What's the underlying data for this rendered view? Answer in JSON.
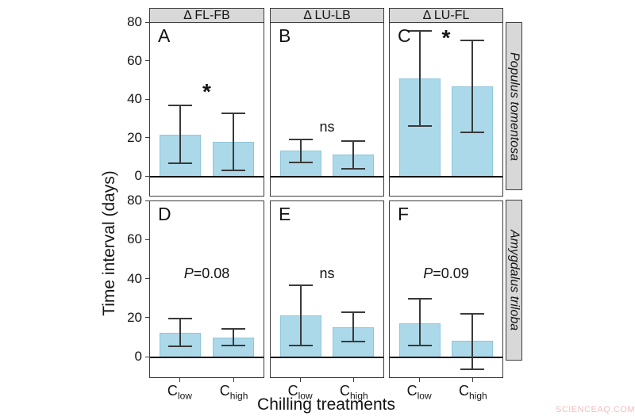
{
  "figure": {
    "y_axis_label": "Time interval (days)",
    "x_axis_label": "Chilling treatments",
    "watermark": "SCIENCEAQ.COM",
    "colors": {
      "bar_fill": "#ABD9E9",
      "bar_edge": "#8FC6DC",
      "error_bar": "#3A3A3A",
      "panel_border": "#3C3C3C",
      "strip_bg": "#D8D8D8",
      "zero_line": "#111111",
      "text": "#141414",
      "watermark": "#F2BEBE"
    }
  },
  "chart_data": {
    "type": "bar",
    "title": "",
    "xlabel": "Chilling treatments",
    "ylabel": "Time interval (days)",
    "ylim": [
      -11,
      80
    ],
    "yticks": [
      0,
      20,
      40,
      60,
      80
    ],
    "grid": false,
    "legend": false,
    "categories": [
      {
        "label": "C",
        "sub": "low"
      },
      {
        "label": "C",
        "sub": "high"
      }
    ],
    "col_facets": [
      "Δ FL-FB",
      "Δ LU-LB",
      "Δ LU-FL"
    ],
    "row_facets": [
      "Populus tomentosa",
      "Amygdalus triloba"
    ],
    "panels": [
      {
        "letter": "A",
        "row": 0,
        "col": 0,
        "annotation": {
          "text": "*",
          "kind": "star",
          "y": 44
        },
        "bars": [
          {
            "category": "Clow",
            "value": 22,
            "err_lo": 7,
            "err_hi": 37
          },
          {
            "category": "Chigh",
            "value": 18,
            "err_lo": 3.5,
            "err_hi": 33
          }
        ]
      },
      {
        "letter": "B",
        "row": 0,
        "col": 1,
        "annotation": {
          "text": "ns",
          "kind": "ns",
          "y": 26
        },
        "bars": [
          {
            "category": "Clow",
            "value": 13.5,
            "err_lo": 7.5,
            "err_hi": 19.5
          },
          {
            "category": "Chigh",
            "value": 11.5,
            "err_lo": 4,
            "err_hi": 18.5
          }
        ]
      },
      {
        "letter": "C",
        "row": 0,
        "col": 2,
        "annotation": {
          "text": "*",
          "kind": "star",
          "y": 72
        },
        "bars": [
          {
            "category": "Clow",
            "value": 51,
            "err_lo": 26.5,
            "err_hi": 76
          },
          {
            "category": "Chigh",
            "value": 47,
            "err_lo": 23,
            "err_hi": 71
          }
        ]
      },
      {
        "letter": "D",
        "row": 1,
        "col": 0,
        "annotation": {
          "text": "P=0.08",
          "kind": "pvalue",
          "y": 43
        },
        "bars": [
          {
            "category": "Clow",
            "value": 12.5,
            "err_lo": 5.5,
            "err_hi": 20
          },
          {
            "category": "Chigh",
            "value": 10,
            "err_lo": 6,
            "err_hi": 14.5
          }
        ]
      },
      {
        "letter": "E",
        "row": 1,
        "col": 1,
        "annotation": {
          "text": "ns",
          "kind": "ns",
          "y": 43
        },
        "bars": [
          {
            "category": "Clow",
            "value": 21.5,
            "err_lo": 6,
            "err_hi": 37
          },
          {
            "category": "Chigh",
            "value": 15.5,
            "err_lo": 8,
            "err_hi": 23
          }
        ]
      },
      {
        "letter": "F",
        "row": 1,
        "col": 2,
        "annotation": {
          "text": "P=0.09",
          "kind": "pvalue",
          "y": 43
        },
        "bars": [
          {
            "category": "Clow",
            "value": 17.5,
            "err_lo": 6,
            "err_hi": 30
          },
          {
            "category": "Chigh",
            "value": 8.5,
            "err_lo": -6,
            "err_hi": 22.5
          }
        ]
      }
    ]
  }
}
